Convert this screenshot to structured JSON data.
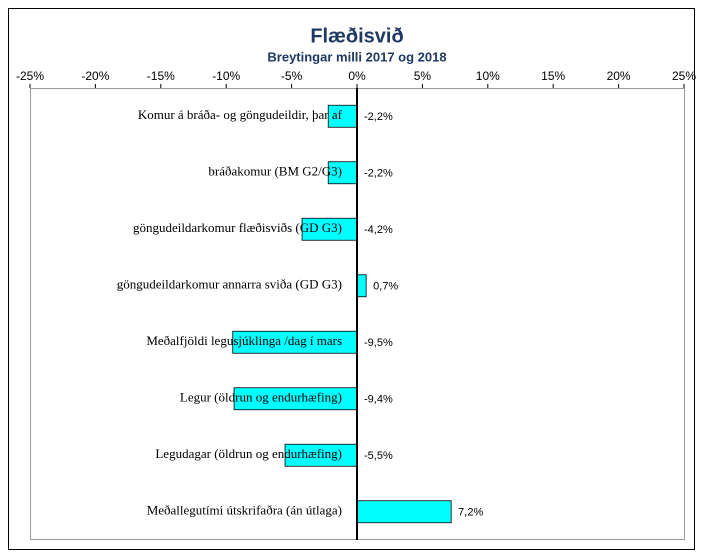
{
  "chart_data": {
    "type": "hbar",
    "title": "Flæðisvið",
    "subtitle": "Breytingar milli 2017 og 2018",
    "categories": [
      "Komur á bráða- og göngudeildir,  þar af",
      "bráðakomur (BM G2/G3)",
      "göngudeildarkomur flæðisviðs (GD G3)",
      "göngudeildarkomur annarra sviða (GD G3)",
      "Meðalfjöldi legusjúklinga /dag í mars",
      "Legur (öldrun og endurhæfing)",
      "Legudagar (öldrun og endurhæfing)",
      "Meðallegutími útskrifaðra (án útlaga)"
    ],
    "values": [
      -2.2,
      -2.2,
      -4.2,
      0.7,
      -9.5,
      -9.4,
      -5.5,
      7.2
    ],
    "value_labels": [
      "-2,2%",
      "-2,2%",
      "-4,2%",
      "0,7%",
      "-9,5%",
      "-9,4%",
      "-5,5%",
      "7,2%"
    ],
    "color": "#00ffff",
    "xlim": [
      -25,
      25
    ],
    "xticks": [
      {
        "value": -25,
        "label": "-25%"
      },
      {
        "value": -20,
        "label": "-20%"
      },
      {
        "value": -15,
        "label": "-15%"
      },
      {
        "value": -10,
        "label": "-10%"
      },
      {
        "value": -5,
        "label": "-5%"
      },
      {
        "value": 0,
        "label": "0%"
      },
      {
        "value": 5,
        "label": "5%"
      },
      {
        "value": 10,
        "label": "10%"
      },
      {
        "value": 15,
        "label": "15%"
      },
      {
        "value": 20,
        "label": "20%"
      },
      {
        "value": 25,
        "label": "25%"
      }
    ]
  }
}
